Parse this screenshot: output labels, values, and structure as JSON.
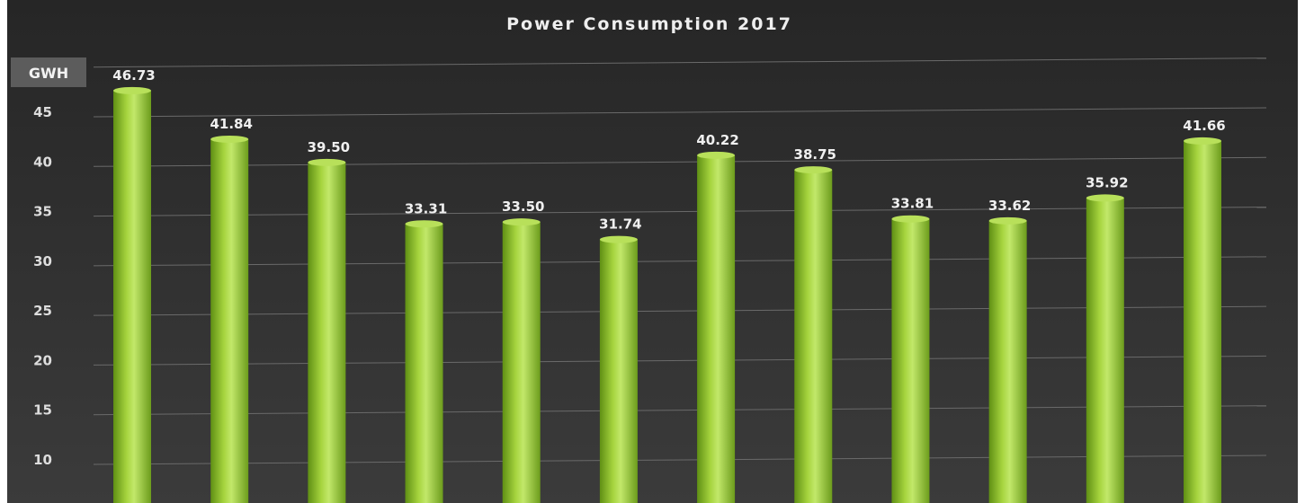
{
  "chart_data": {
    "type": "bar",
    "title": "Power Consumption 2017",
    "ylabel": "GWH",
    "xlabel": "",
    "ylim": [
      5,
      50
    ],
    "yticks": [
      10,
      15,
      20,
      25,
      30,
      35,
      40,
      45
    ],
    "values": [
      46.73,
      41.84,
      39.5,
      33.31,
      33.5,
      31.74,
      40.22,
      38.75,
      33.81,
      33.62,
      35.92,
      41.66
    ],
    "value_labels": [
      "46.73",
      "41.84",
      "39.50",
      "33.31",
      "33.50",
      "31.74",
      "40.22",
      "38.75",
      "33.81",
      "33.62",
      "35.92",
      "41.66"
    ],
    "grid": true,
    "colors": {
      "background_top": "#2a2a2a",
      "background_bottom": "#3a3a3a",
      "bar": "#8fc02f",
      "bar_highlight": "#c4e86a",
      "grid": "#6a6a6a",
      "unit_box": "#5c5c5c"
    }
  }
}
